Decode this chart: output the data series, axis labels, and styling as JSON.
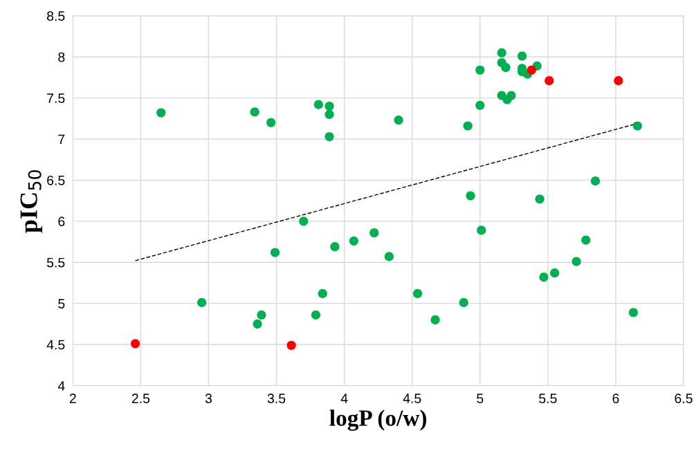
{
  "chart_data": {
    "type": "scatter",
    "xlabel": "logP (o/w)",
    "ylabel": "pIC$_{50}$",
    "xlim": [
      2,
      6.5
    ],
    "ylim": [
      4,
      8.5
    ],
    "xticks": [
      2,
      2.5,
      3,
      3.5,
      4,
      4.5,
      5,
      5.5,
      6,
      6.5
    ],
    "yticks": [
      4,
      4.5,
      5,
      5.5,
      6,
      6.5,
      7,
      7.5,
      8,
      8.5
    ],
    "grid": true,
    "marker": "circle",
    "series": [
      {
        "color": "#00b050",
        "x": [
          2.65,
          3.34,
          3.46,
          3.81,
          3.89,
          3.89,
          3.89,
          4.4,
          4.91,
          5.0,
          5.0,
          5.16,
          5.16,
          5.19,
          5.16,
          5.2,
          5.23,
          5.31,
          5.31,
          5.31,
          5.35,
          5.42,
          6.16,
          5.85,
          4.93,
          5.44,
          3.7,
          5.01,
          4.22,
          4.07,
          3.93,
          3.49,
          4.33,
          5.78,
          5.71,
          5.55,
          5.47,
          2.95,
          3.84,
          4.54,
          4.88,
          3.39,
          3.36,
          3.79,
          4.67,
          6.13
        ],
        "values": [
          7.32,
          7.33,
          7.2,
          7.42,
          7.4,
          7.3,
          7.03,
          7.23,
          7.16,
          7.84,
          7.41,
          8.05,
          7.93,
          7.87,
          7.53,
          7.48,
          7.53,
          8.01,
          7.86,
          7.82,
          7.79,
          7.89,
          7.16,
          6.49,
          6.31,
          6.27,
          6.0,
          5.89,
          5.86,
          5.76,
          5.69,
          5.62,
          5.57,
          5.77,
          5.51,
          5.37,
          5.32,
          5.01,
          5.12,
          5.12,
          5.01,
          4.86,
          4.75,
          4.86,
          4.8,
          4.89
        ]
      },
      {
        "color": "#ff0000",
        "x": [
          2.46,
          3.61,
          5.38,
          5.51,
          6.02
        ],
        "values": [
          4.51,
          4.49,
          7.84,
          7.71,
          7.71
        ]
      },
      {
        "type": "line",
        "color": "#000000",
        "line_style": "dashed",
        "marker": "none",
        "x": [
          2.46,
          6.16
        ],
        "values": [
          5.52,
          7.19
        ]
      }
    ]
  }
}
